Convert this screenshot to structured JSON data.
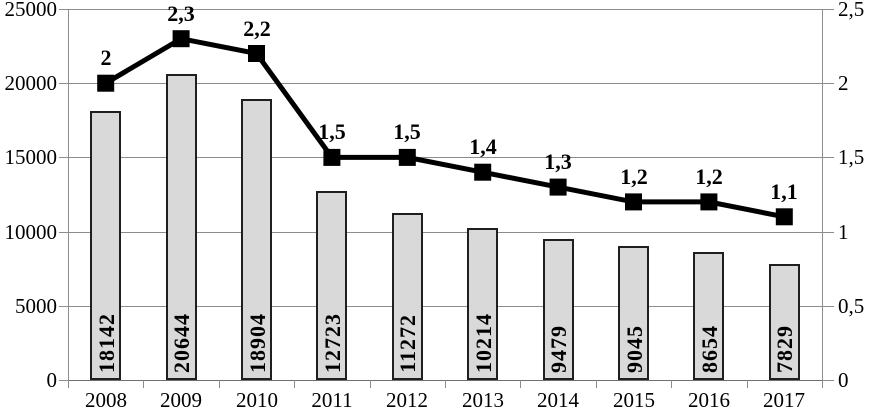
{
  "chart_data": {
    "type": "combo-bar-line",
    "title": "",
    "xlabel": "",
    "ylabel": "",
    "grid": true,
    "background": "#ffffff",
    "categories": [
      "2008",
      "2009",
      "2010",
      "2011",
      "2012",
      "2013",
      "2014",
      "2015",
      "2016",
      "2017"
    ],
    "series": [
      {
        "name": "bars",
        "type": "bar",
        "axis": "left",
        "values": [
          18142,
          20644,
          18904,
          12723,
          11272,
          10214,
          9479,
          9045,
          8654,
          7829
        ],
        "labels": [
          "18142",
          "20644",
          "18904",
          "12723",
          "11272",
          "10214",
          "9479",
          "9045",
          "8654",
          "7829"
        ]
      },
      {
        "name": "line",
        "type": "line",
        "axis": "right",
        "values": [
          2,
          2.3,
          2.2,
          1.5,
          1.5,
          1.4,
          1.3,
          1.2,
          1.2,
          1.1
        ],
        "labels": [
          "2",
          "2,3",
          "2,2",
          "1,5",
          "1,5",
          "1,4",
          "1,3",
          "1,2",
          "1,2",
          "1,1"
        ]
      }
    ],
    "left_axis": {
      "min": 0,
      "max": 25000,
      "tick_values": [
        0,
        5000,
        10000,
        15000,
        20000,
        25000
      ],
      "tick_labels": [
        "0",
        "5000",
        "10000",
        "15000",
        "20000",
        "25000"
      ]
    },
    "right_axis": {
      "min": 0,
      "max": 2.5,
      "tick_values": [
        0,
        0.5,
        1,
        1.5,
        2,
        2.5
      ],
      "tick_labels": [
        "0",
        "0,5",
        "1",
        "1,5",
        "2",
        "2,5"
      ]
    },
    "colors": {
      "bar_fill": "#d9d9d9",
      "bar_border": "#1f1f1f",
      "line": "#000000",
      "marker": "#000000",
      "grid": "#8c8c8c",
      "text": "#000000"
    }
  }
}
